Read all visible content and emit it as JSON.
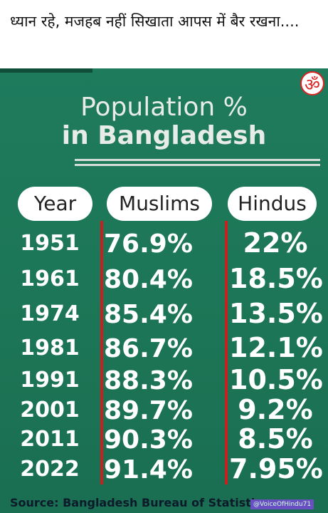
{
  "post": {
    "caption": "ध्यान रहे, मजहब नहीं सिखाता आपस में बैर रखना...."
  },
  "image": {
    "logo": "ॐ",
    "title_line1": "Population %",
    "title_line2": "in Bangladesh",
    "table": {
      "headers": [
        "Year",
        "Muslims",
        "Hindus"
      ],
      "rows": [
        [
          "1951",
          "76.9%",
          "22%"
        ],
        [
          "1961",
          "80.4%",
          "18.5%"
        ],
        [
          "1974",
          "85.4%",
          "13.5%"
        ],
        [
          "1981",
          "86.7%",
          "12.1%"
        ],
        [
          "1991",
          "88.3%",
          "10.5%"
        ],
        [
          "2001",
          "89.7%",
          "9.2%"
        ],
        [
          "2011",
          "90.3%",
          "8.5%"
        ],
        [
          "2022",
          "91.4%",
          "7.95%"
        ]
      ]
    },
    "source": "Source: Bangladesh Bureau of Statistics",
    "watermark": "@VoiceOfHindu71"
  }
}
